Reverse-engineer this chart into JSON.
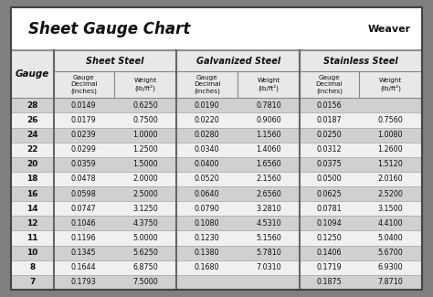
{
  "title": "Sheet Gauge Chart",
  "bg_outer": "#808080",
  "bg_inner": "#ffffff",
  "bg_header_top": "#d8d8d8",
  "bg_header_sub": "#e8e8e8",
  "bg_row_odd": "#d0d0d0",
  "bg_row_even": "#f0f0f0",
  "col_headers": [
    "Sheet Steel",
    "Galvanized Steel",
    "Stainless Steel"
  ],
  "gauges": [
    "28",
    "26",
    "24",
    "22",
    "20",
    "18",
    "16",
    "14",
    "12",
    "11",
    "10",
    "8",
    "7"
  ],
  "sheet_steel": [
    [
      "0.0149",
      "0.6250"
    ],
    [
      "0.0179",
      "0.7500"
    ],
    [
      "0.0239",
      "1.0000"
    ],
    [
      "0.0299",
      "1.2500"
    ],
    [
      "0.0359",
      "1.5000"
    ],
    [
      "0.0478",
      "2.0000"
    ],
    [
      "0.0598",
      "2.5000"
    ],
    [
      "0.0747",
      "3.1250"
    ],
    [
      "0.1046",
      "4.3750"
    ],
    [
      "0.1196",
      "5.0000"
    ],
    [
      "0.1345",
      "5.6250"
    ],
    [
      "0.1644",
      "6.8750"
    ],
    [
      "0.1793",
      "7.5000"
    ]
  ],
  "galvanized_steel": [
    [
      "0.0190",
      "0.7810"
    ],
    [
      "0.0220",
      "0.9060"
    ],
    [
      "0.0280",
      "1.1560"
    ],
    [
      "0.0340",
      "1.4060"
    ],
    [
      "0.0400",
      "1.6560"
    ],
    [
      "0.0520",
      "2.1560"
    ],
    [
      "0.0640",
      "2.6560"
    ],
    [
      "0.0790",
      "3.2810"
    ],
    [
      "0.1080",
      "4.5310"
    ],
    [
      "0.1230",
      "5.1560"
    ],
    [
      "0.1380",
      "5.7810"
    ],
    [
      "0.1680",
      "7.0310"
    ],
    [
      "",
      ""
    ]
  ],
  "stainless_steel": [
    [
      "0.0156",
      ""
    ],
    [
      "0.0187",
      "0.7560"
    ],
    [
      "0.0250",
      "1.0080"
    ],
    [
      "0.0312",
      "1.2600"
    ],
    [
      "0.0375",
      "1.5120"
    ],
    [
      "0.0500",
      "2.0160"
    ],
    [
      "0.0625",
      "2.5200"
    ],
    [
      "0.0781",
      "3.1500"
    ],
    [
      "0.1094",
      "4.4100"
    ],
    [
      "0.1250",
      "5.0400"
    ],
    [
      "0.1406",
      "5.6700"
    ],
    [
      "0.1719",
      "6.9300"
    ],
    [
      "0.1875",
      "7.8710"
    ]
  ]
}
